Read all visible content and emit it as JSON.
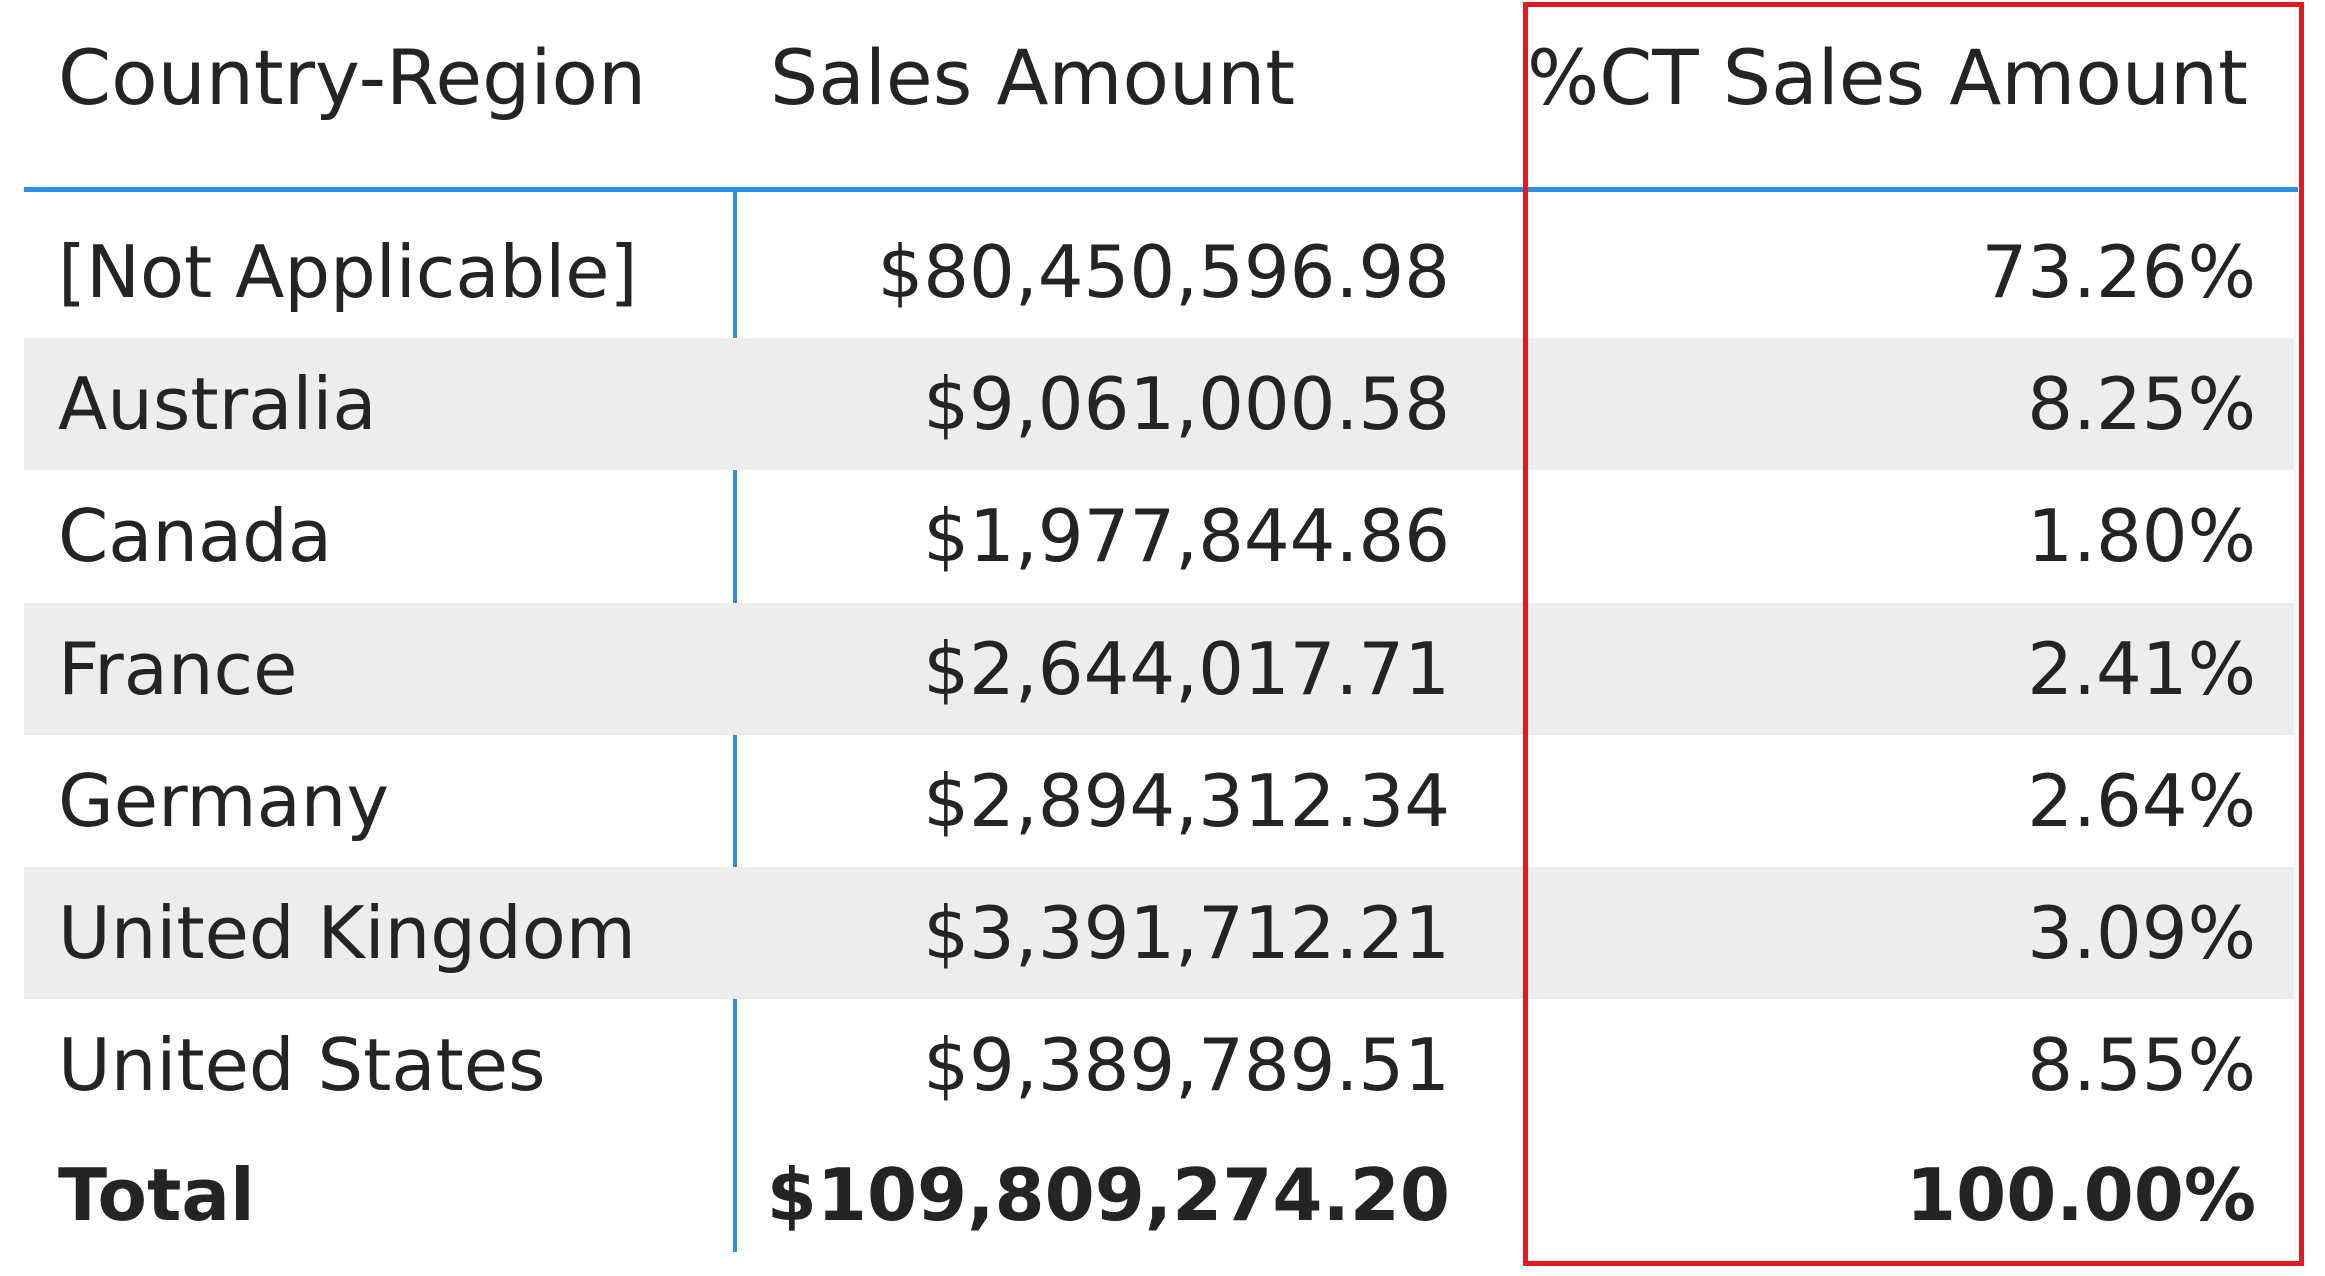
{
  "chart_data": {
    "type": "table",
    "columns": [
      "Country-Region",
      "Sales Amount",
      "%CT Sales Amount"
    ],
    "rows": [
      {
        "region": "[Not Applicable]",
        "sales": "$80,450,596.98",
        "pct": "73.26%"
      },
      {
        "region": "Australia",
        "sales": "$9,061,000.58",
        "pct": "8.25%"
      },
      {
        "region": "Canada",
        "sales": "$1,977,844.86",
        "pct": "1.80%"
      },
      {
        "region": "France",
        "sales": "$2,644,017.71",
        "pct": "2.41%"
      },
      {
        "region": "Germany",
        "sales": "$2,894,312.34",
        "pct": "2.64%"
      },
      {
        "region": "United Kingdom",
        "sales": "$3,391,712.21",
        "pct": "3.09%"
      },
      {
        "region": "United States",
        "sales": "$9,389,789.51",
        "pct": "8.55%"
      }
    ],
    "total": {
      "region": "Total",
      "sales": "$109,809,274.20",
      "pct": "100.00%"
    }
  },
  "colors": {
    "accent_rule": "#2d8ee6",
    "highlight_box": "#e01a22",
    "band": "#ededed",
    "text": "#252423"
  }
}
